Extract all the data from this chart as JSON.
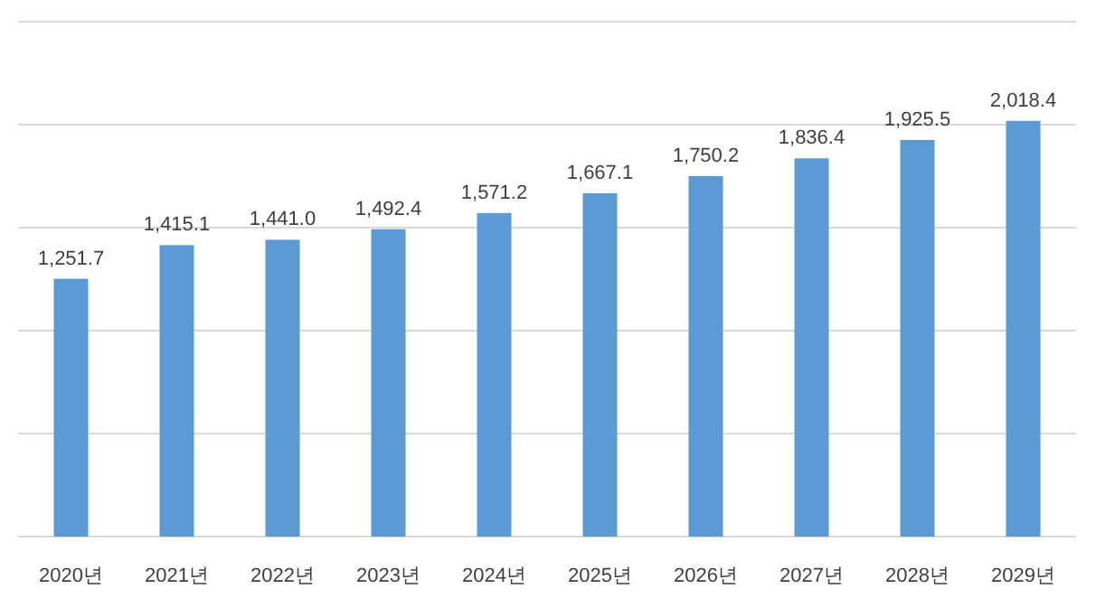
{
  "chart_data": {
    "type": "bar",
    "categories": [
      "2020년",
      "2021년",
      "2022년",
      "2023년",
      "2024년",
      "2025년",
      "2026년",
      "2027년",
      "2028년",
      "2029년"
    ],
    "values": [
      1251.7,
      1415.1,
      1441.0,
      1492.4,
      1571.2,
      1667.1,
      1750.2,
      1836.4,
      1925.5,
      2018.4
    ],
    "value_labels": [
      "1,251.7",
      "1,415.1",
      "1,441.0",
      "1,492.4",
      "1,571.2",
      "1,667.1",
      "1,750.2",
      "1,836.4",
      "1,925.5",
      "2,018.4"
    ],
    "color": "#5b9bd5",
    "ylim": [
      0,
      2500
    ],
    "yticks": [
      {
        "value": 0,
        "label": null
      },
      {
        "value": 500,
        "label": null
      },
      {
        "value": 1000,
        "label": null
      },
      {
        "value": 1500,
        "label": null
      },
      {
        "value": 2000,
        "label": null
      },
      {
        "value": 2500,
        "label": null
      }
    ],
    "tick_labels": "x",
    "grid": "y"
  }
}
